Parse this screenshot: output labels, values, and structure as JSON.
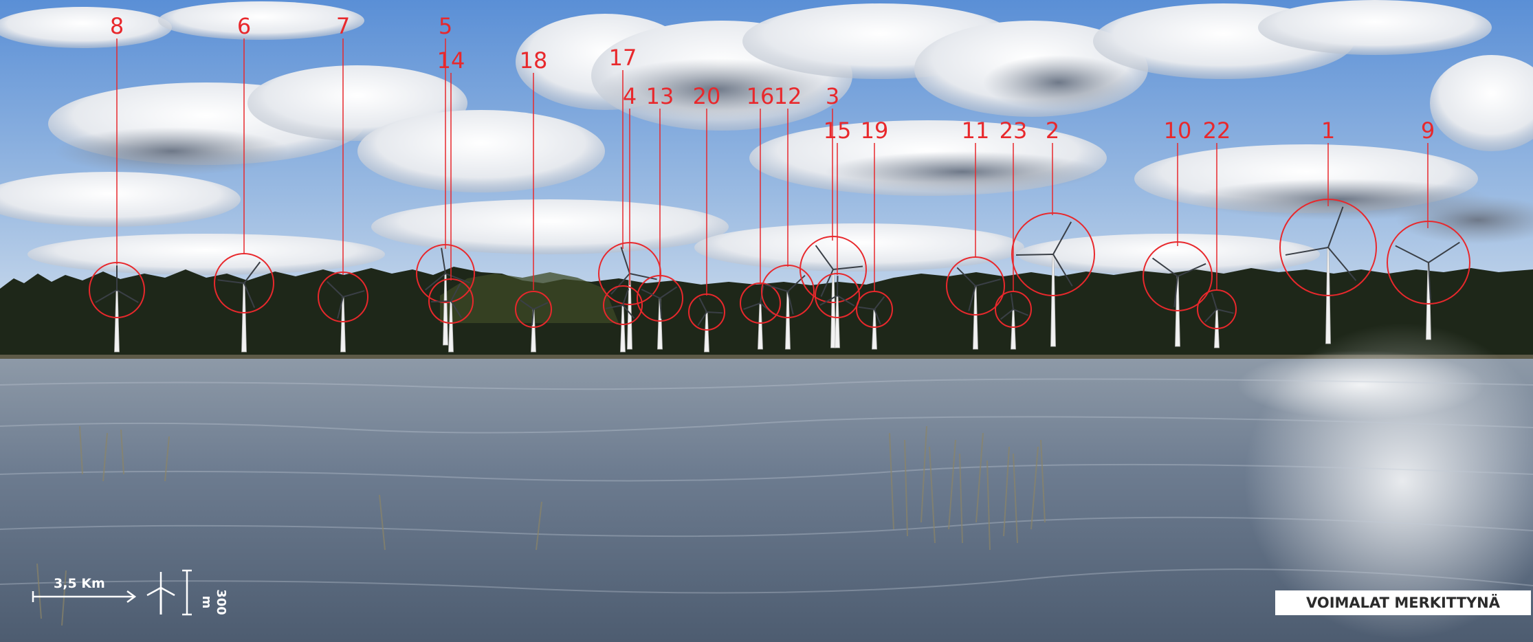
{
  "scene": {
    "colors": {
      "sky_top": "#5a8fd6",
      "sky_bottom": "#cfdcec",
      "cloud": "#f4f5f7",
      "cloud_shadow": "#8c96a4",
      "forest": "#1c2418",
      "water": "#6b7a8e",
      "marker": "#e8282c",
      "turbine": "#f2f2f2"
    },
    "turbines": [
      {
        "id": "8",
        "label": "8"
      },
      {
        "id": "6",
        "label": "6"
      },
      {
        "id": "7",
        "label": "7"
      },
      {
        "id": "5",
        "label": "5"
      },
      {
        "id": "14",
        "label": "14"
      },
      {
        "id": "18",
        "label": "18"
      },
      {
        "id": "17",
        "label": "17"
      },
      {
        "id": "4",
        "label": "4"
      },
      {
        "id": "13",
        "label": "13"
      },
      {
        "id": "20",
        "label": "20"
      },
      {
        "id": "16",
        "label": "16"
      },
      {
        "id": "12",
        "label": "12"
      },
      {
        "id": "3",
        "label": "3"
      },
      {
        "id": "15",
        "label": "15"
      },
      {
        "id": "19",
        "label": "19"
      },
      {
        "id": "11",
        "label": "11"
      },
      {
        "id": "23",
        "label": "23"
      },
      {
        "id": "2",
        "label": "2"
      },
      {
        "id": "10",
        "label": "10"
      },
      {
        "id": "22",
        "label": "22"
      },
      {
        "id": "1",
        "label": "1"
      },
      {
        "id": "9",
        "label": "9"
      }
    ]
  },
  "scale_bar": {
    "distance_label": "3,5 Km",
    "height_label": "300 m"
  },
  "caption": "VOIMALAT MERKITTYNÄ"
}
